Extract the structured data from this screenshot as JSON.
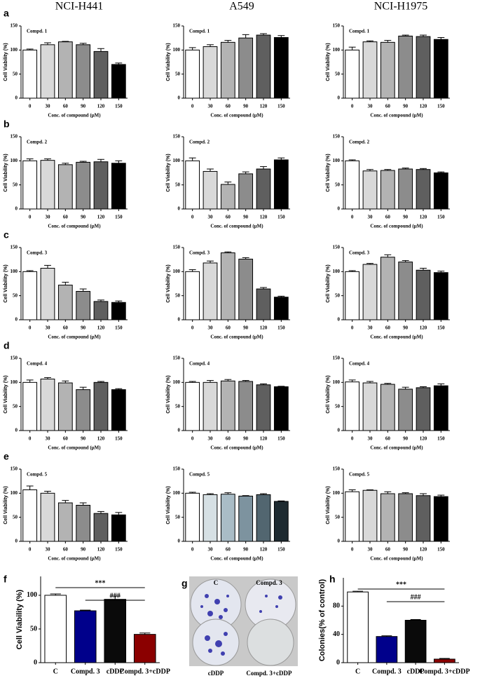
{
  "column_titles": [
    "NCI-H441",
    "A549",
    "NCI-H1975"
  ],
  "row_labels": [
    "a",
    "b",
    "c",
    "d",
    "e"
  ],
  "panel_g": {
    "label": "g",
    "labels": [
      "C",
      "Compd. 3",
      "cDDP",
      "Compd. 3+cDDP"
    ]
  },
  "chart_data": [
    {
      "type": "bar",
      "panel": "Compd. 1",
      "ylabel": "Cell Viability (%)",
      "xlabel": "Conc. of compound (μM)",
      "categories": [
        "0",
        "30",
        "60",
        "90",
        "120",
        "150"
      ],
      "values": [
        100,
        111,
        117,
        111,
        97,
        70
      ],
      "errors": [
        2,
        4,
        1,
        3,
        6,
        3
      ],
      "colors": [
        "#ffffff",
        "#d9d9d9",
        "#b3b3b3",
        "#8c8c8c",
        "#5f5f5f",
        "#000000"
      ],
      "ylim": [
        0,
        150
      ],
      "yticks": [
        0,
        50,
        100,
        150
      ]
    },
    {
      "type": "bar",
      "panel": "Compd. 1",
      "ylabel": "Cell Viability (%)",
      "xlabel": "Conc. of compound (μM)",
      "categories": [
        "0",
        "30",
        "60",
        "90",
        "120",
        "150"
      ],
      "values": [
        100,
        107,
        116,
        125,
        131,
        126
      ],
      "errors": [
        5,
        4,
        4,
        7,
        3,
        4
      ],
      "colors": [
        "#ffffff",
        "#d9d9d9",
        "#b3b3b3",
        "#8c8c8c",
        "#5f5f5f",
        "#000000"
      ],
      "ylim": [
        0,
        150
      ],
      "yticks": [
        0,
        50,
        100,
        150
      ]
    },
    {
      "type": "bar",
      "panel": "Compd. 1",
      "ylabel": "Cell Viability (%)",
      "xlabel": "Conc. of compound (μM)",
      "categories": [
        "0",
        "30",
        "60",
        "90",
        "120",
        "150"
      ],
      "values": [
        100,
        117,
        116,
        129,
        128,
        122
      ],
      "errors": [
        6,
        2,
        4,
        2,
        3,
        4
      ],
      "colors": [
        "#ffffff",
        "#d9d9d9",
        "#b3b3b3",
        "#8c8c8c",
        "#5f5f5f",
        "#000000"
      ],
      "ylim": [
        0,
        150
      ],
      "yticks": [
        0,
        50,
        100,
        150
      ]
    },
    {
      "type": "bar",
      "panel": "Compd. 2",
      "ylabel": "Cell Viability (%)",
      "xlabel": "Conc. of compound (μM)",
      "categories": [
        "0",
        "30",
        "60",
        "90",
        "120",
        "150"
      ],
      "values": [
        100,
        101,
        92,
        97,
        98,
        95
      ],
      "errors": [
        4,
        3,
        3,
        2,
        5,
        5
      ],
      "colors": [
        "#ffffff",
        "#d9d9d9",
        "#b3b3b3",
        "#8c8c8c",
        "#5f5f5f",
        "#000000"
      ],
      "ylim": [
        0,
        150
      ],
      "yticks": [
        0,
        50,
        100,
        150
      ]
    },
    {
      "type": "bar",
      "panel": "Compd. 2",
      "ylabel": "Cell Viability (%)",
      "xlabel": "Conc. of compound (μM)",
      "categories": [
        "0",
        "30",
        "60",
        "90",
        "120",
        "150"
      ],
      "values": [
        100,
        78,
        51,
        73,
        83,
        102
      ],
      "errors": [
        6,
        5,
        5,
        4,
        5,
        4
      ],
      "colors": [
        "#ffffff",
        "#d9d9d9",
        "#b3b3b3",
        "#8c8c8c",
        "#5f5f5f",
        "#000000"
      ],
      "ylim": [
        0,
        150
      ],
      "yticks": [
        0,
        50,
        100,
        150
      ]
    },
    {
      "type": "bar",
      "panel": "Compd. 2",
      "ylabel": "Cell Viability (%)",
      "xlabel": "Conc. of compound (μM)",
      "categories": [
        "0",
        "30",
        "60",
        "90",
        "120",
        "150"
      ],
      "values": [
        100,
        79,
        80,
        83,
        82,
        75
      ],
      "errors": [
        2,
        3,
        2,
        2,
        2,
        2
      ],
      "colors": [
        "#ffffff",
        "#d9d9d9",
        "#b3b3b3",
        "#8c8c8c",
        "#5f5f5f",
        "#000000"
      ],
      "ylim": [
        0,
        150
      ],
      "yticks": [
        0,
        50,
        100,
        150
      ]
    },
    {
      "type": "bar",
      "panel": "Compd. 3",
      "ylabel": "Cell Viability (%)",
      "xlabel": "Conc. of compound (μM)",
      "categories": [
        "0",
        "30",
        "60",
        "90",
        "120",
        "150"
      ],
      "values": [
        100,
        107,
        72,
        59,
        38,
        36
      ],
      "errors": [
        2,
        6,
        6,
        5,
        3,
        3
      ],
      "colors": [
        "#ffffff",
        "#d9d9d9",
        "#b3b3b3",
        "#8c8c8c",
        "#5f5f5f",
        "#000000"
      ],
      "ylim": [
        0,
        150
      ],
      "yticks": [
        0,
        50,
        100,
        150
      ]
    },
    {
      "type": "bar",
      "panel": "Compd. 3",
      "ylabel": "Cell Viability (%)",
      "xlabel": "Conc. of compound (μM)",
      "categories": [
        "0",
        "30",
        "60",
        "90",
        "120",
        "150"
      ],
      "values": [
        100,
        118,
        139,
        126,
        64,
        47
      ],
      "errors": [
        4,
        4,
        2,
        3,
        3,
        2
      ],
      "colors": [
        "#ffffff",
        "#d9d9d9",
        "#b3b3b3",
        "#8c8c8c",
        "#5f5f5f",
        "#000000"
      ],
      "ylim": [
        0,
        150
      ],
      "yticks": [
        0,
        50,
        100,
        150
      ]
    },
    {
      "type": "bar",
      "panel": "Compd. 3",
      "ylabel": "Cell Viability (%)",
      "xlabel": "Conc. of compound (μM)",
      "categories": [
        "0",
        "30",
        "60",
        "90",
        "120",
        "150"
      ],
      "values": [
        100,
        115,
        130,
        120,
        103,
        98
      ],
      "errors": [
        2,
        2,
        5,
        3,
        4,
        3
      ],
      "colors": [
        "#ffffff",
        "#d9d9d9",
        "#b3b3b3",
        "#8c8c8c",
        "#5f5f5f",
        "#000000"
      ],
      "ylim": [
        0,
        150
      ],
      "yticks": [
        0,
        50,
        100,
        150
      ]
    },
    {
      "type": "bar",
      "panel": "Compd. 4",
      "ylabel": "Cell Viability (%)",
      "xlabel": "Conc. of compound (μM)",
      "categories": [
        "0",
        "30",
        "60",
        "90",
        "120",
        "150"
      ],
      "values": [
        100,
        107,
        99,
        85,
        100,
        85
      ],
      "errors": [
        5,
        3,
        4,
        5,
        2,
        2
      ],
      "colors": [
        "#ffffff",
        "#d9d9d9",
        "#b3b3b3",
        "#8c8c8c",
        "#5f5f5f",
        "#000000"
      ],
      "ylim": [
        0,
        150
      ],
      "yticks": [
        0,
        50,
        100,
        150
      ]
    },
    {
      "type": "bar",
      "panel": "Compd. 4",
      "ylabel": "Cell Viability (%)",
      "xlabel": "Conc. of compound (μM)",
      "categories": [
        "0",
        "30",
        "60",
        "90",
        "120",
        "150"
      ],
      "values": [
        100,
        100,
        103,
        102,
        95,
        91
      ],
      "errors": [
        2,
        4,
        3,
        2,
        2,
        1
      ],
      "colors": [
        "#ffffff",
        "#d9d9d9",
        "#b3b3b3",
        "#8c8c8c",
        "#5f5f5f",
        "#000000"
      ],
      "ylim": [
        0,
        150
      ],
      "yticks": [
        0,
        50,
        100,
        150
      ]
    },
    {
      "type": "bar",
      "panel": "Compd. 4",
      "ylabel": "Cell Viability (%)",
      "xlabel": "Conc. of compound (μM)",
      "categories": [
        "0",
        "30",
        "60",
        "90",
        "120",
        "150"
      ],
      "values": [
        101,
        99,
        96,
        86,
        89,
        93
      ],
      "errors": [
        4,
        3,
        2,
        4,
        2,
        4
      ],
      "colors": [
        "#ffffff",
        "#d9d9d9",
        "#b3b3b3",
        "#8c8c8c",
        "#5f5f5f",
        "#000000"
      ],
      "ylim": [
        0,
        150
      ],
      "yticks": [
        0,
        50,
        100,
        150
      ]
    },
    {
      "type": "bar",
      "panel": "Compd. 5",
      "ylabel": "Cell Viability (%)",
      "xlabel": "Conc. of compound (μM)",
      "categories": [
        "0",
        "30",
        "60",
        "90",
        "120",
        "150"
      ],
      "values": [
        107,
        100,
        80,
        75,
        58,
        55
      ],
      "errors": [
        8,
        4,
        5,
        5,
        4,
        5
      ],
      "colors": [
        "#ffffff",
        "#d9d9d9",
        "#b3b3b3",
        "#8c8c8c",
        "#5f5f5f",
        "#000000"
      ],
      "ylim": [
        0,
        150
      ],
      "yticks": [
        0,
        50,
        100,
        150
      ]
    },
    {
      "type": "bar",
      "panel": "Compd. 5",
      "ylabel": "Cell Viability (%)",
      "xlabel": "Conc. of compound (μM)",
      "categories": [
        "0",
        "30",
        "60",
        "90",
        "120",
        "150"
      ],
      "values": [
        100,
        97,
        98,
        94,
        97,
        83
      ],
      "errors": [
        2,
        2,
        3,
        1,
        2,
        1
      ],
      "colors": [
        "#ffffff",
        "#d6e0e4",
        "#a9bcc6",
        "#7d939f",
        "#526670",
        "#1e2a30"
      ],
      "ylim": [
        0,
        150
      ],
      "yticks": [
        0,
        50,
        100,
        150
      ]
    },
    {
      "type": "bar",
      "panel": "Compd. 5",
      "ylabel": "Cell Viability (%)",
      "xlabel": "Conc. of compound (μM)",
      "categories": [
        "0",
        "30",
        "60",
        "90",
        "120",
        "150"
      ],
      "values": [
        103,
        106,
        99,
        99,
        95,
        93
      ],
      "errors": [
        4,
        1,
        4,
        2,
        4,
        3
      ],
      "colors": [
        "#ffffff",
        "#d9d9d9",
        "#b3b3b3",
        "#8c8c8c",
        "#5f5f5f",
        "#000000"
      ],
      "ylim": [
        0,
        150
      ],
      "yticks": [
        0,
        50,
        100,
        150
      ]
    },
    {
      "type": "bar",
      "label": "f",
      "ylabel": "Cell Viability (%)",
      "categories": [
        "C",
        "Compd. 3",
        "cDDP",
        "Compd. 3+cDDP"
      ],
      "values": [
        100,
        77,
        94,
        42
      ],
      "errors": [
        2,
        1,
        5,
        2
      ],
      "colors": [
        "#ffffff",
        "#00008b",
        "#0a0a0a",
        "#8b0000"
      ],
      "ylim": [
        0,
        128
      ],
      "yticks": [
        0,
        50,
        100
      ],
      "annotations": [
        "***",
        "###"
      ]
    },
    {
      "type": "bar",
      "label": "h",
      "ylabel": "Colonies(% of control)",
      "categories": [
        "C",
        "Compd. 3",
        "cDDP",
        "Compd. 3+cDDP"
      ],
      "values": [
        100,
        37,
        60,
        5
      ],
      "errors": [
        1,
        1,
        1,
        1
      ],
      "colors": [
        "#ffffff",
        "#00008b",
        "#0a0a0a",
        "#8b0000"
      ],
      "ylim": [
        0,
        120
      ],
      "yticks": [
        0,
        40,
        80
      ],
      "annotations": [
        "***",
        "###"
      ]
    }
  ]
}
